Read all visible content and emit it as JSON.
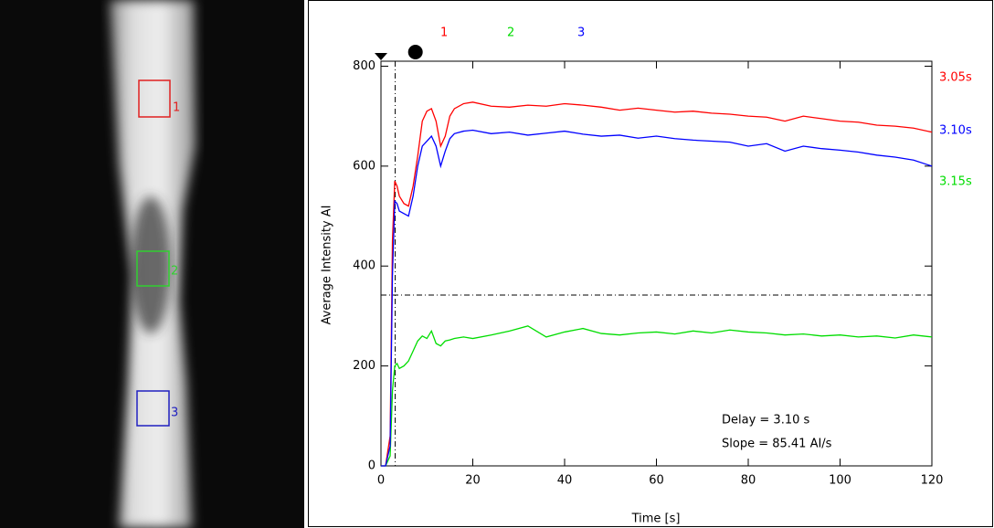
{
  "image": {
    "roi_labels": [
      "1",
      "2",
      "3"
    ]
  },
  "chart_data": {
    "type": "line",
    "xlabel": "Time [s]",
    "ylabel": "Average Intensity AI",
    "x": [
      0,
      1,
      2,
      2.5,
      3,
      3.5,
      4,
      5,
      6,
      7,
      8,
      9,
      10,
      11,
      12,
      13,
      14,
      15,
      16,
      18,
      20,
      24,
      28,
      32,
      36,
      40,
      44,
      48,
      52,
      56,
      60,
      64,
      68,
      72,
      76,
      80,
      84,
      88,
      92,
      96,
      100,
      104,
      108,
      112,
      116,
      120
    ],
    "series": [
      {
        "name": "1",
        "label": "3.05s",
        "color": "#ff0000",
        "values": [
          0,
          0,
          60,
          450,
          570,
          560,
          540,
          525,
          520,
          560,
          620,
          690,
          710,
          715,
          690,
          640,
          660,
          700,
          715,
          725,
          728,
          720,
          718,
          722,
          720,
          725,
          722,
          718,
          712,
          716,
          712,
          708,
          710,
          706,
          704,
          700,
          698,
          690,
          700,
          695,
          690,
          688,
          682,
          680,
          676,
          668
        ]
      },
      {
        "name": "2",
        "label": "3.15s",
        "color": "#00dd00",
        "values": [
          0,
          0,
          20,
          150,
          200,
          205,
          195,
          200,
          210,
          230,
          250,
          260,
          255,
          270,
          245,
          240,
          250,
          252,
          255,
          258,
          255,
          262,
          270,
          280,
          258,
          268,
          275,
          265,
          262,
          266,
          268,
          264,
          270,
          266,
          272,
          268,
          266,
          262,
          264,
          260,
          262,
          258,
          260,
          256,
          262,
          258
        ]
      },
      {
        "name": "3",
        "label": "3.10s",
        "color": "#0000ff",
        "values": [
          0,
          0,
          40,
          380,
          530,
          525,
          510,
          505,
          500,
          540,
          600,
          640,
          650,
          660,
          640,
          600,
          630,
          655,
          665,
          670,
          672,
          665,
          668,
          662,
          666,
          670,
          664,
          660,
          662,
          656,
          660,
          655,
          652,
          650,
          648,
          640,
          645,
          630,
          640,
          635,
          632,
          628,
          622,
          618,
          612,
          600
        ]
      }
    ],
    "xlim": [
      0,
      120
    ],
    "xticks": [
      0,
      20,
      40,
      60,
      80,
      100,
      120
    ],
    "ylim": [
      0,
      810
    ],
    "yticks": [
      0,
      200,
      400,
      600,
      800
    ],
    "markers": [
      {
        "shape": "triangle",
        "x": 0
      },
      {
        "shape": "circle",
        "x": 7.5
      }
    ],
    "vline": 3.1,
    "hline": 342,
    "annotations": [
      "Delay = 3.10 s",
      "Slope = 85.41 AI/s"
    ]
  }
}
